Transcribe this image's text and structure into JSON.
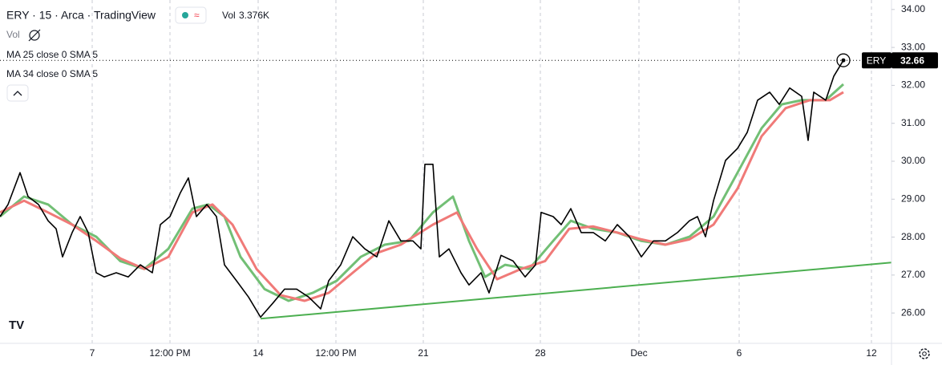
{
  "chart_data": {
    "type": "line",
    "title": "ERY · 15 · Arca · TradingView",
    "volume_title": "Vol",
    "volume_value": "3.376K",
    "volume_legend": "Vol",
    "indicators": [
      "MA 25 close 0 SMA 5",
      "MA 34 close 0 SMA 5"
    ],
    "price_tag": {
      "label": "ERY",
      "value": 32.66
    },
    "xlim": [
      0,
      1112
    ],
    "xticks": [
      {
        "value": 115,
        "label": "7"
      },
      {
        "value": 212,
        "label": "12:00 PM"
      },
      {
        "value": 322,
        "label": "14"
      },
      {
        "value": 419,
        "label": "12:00 PM"
      },
      {
        "value": 528,
        "label": "21"
      },
      {
        "value": 674,
        "label": "28"
      },
      {
        "value": 797,
        "label": "Dec"
      },
      {
        "value": 922,
        "label": "6"
      },
      {
        "value": 1087,
        "label": "12"
      }
    ],
    "ylim": [
      25.2,
      34.25
    ],
    "yticks": [
      {
        "value": 26,
        "label": "26.00"
      },
      {
        "value": 27,
        "label": "27.00"
      },
      {
        "value": 28,
        "label": "28.00"
      },
      {
        "value": 29,
        "label": "29.00"
      },
      {
        "value": 30,
        "label": "30.00"
      },
      {
        "value": 31,
        "label": "31.00"
      },
      {
        "value": 32,
        "label": "32.00"
      },
      {
        "value": 33,
        "label": "33.00"
      },
      {
        "value": 34,
        "label": "34.00"
      }
    ],
    "xgrid": true,
    "ygrid": false,
    "series": [
      {
        "color": "#000000",
        "x": [
          0,
          10,
          25,
          35,
          48,
          60,
          70,
          78,
          90,
          100,
          110,
          120,
          130,
          145,
          160,
          175,
          190,
          200,
          212,
          225,
          235,
          245,
          258,
          270,
          280,
          295,
          310,
          325,
          340,
          355,
          370,
          385,
          400,
          410,
          425,
          440,
          455,
          470,
          485,
          500,
          515,
          525,
          530,
          540,
          548,
          560,
          575,
          585,
          600,
          610,
          625,
          640,
          655,
          668,
          675,
          690,
          700,
          712,
          725,
          740,
          755,
          770,
          785,
          800,
          815,
          830,
          845,
          860,
          870,
          880,
          890,
          905,
          920,
          932,
          945,
          960,
          972,
          985,
          1000,
          1008,
          1015,
          1030,
          1040,
          1052
        ],
        "values": [
          28.54,
          28.86,
          29.7,
          29.07,
          28.86,
          28.43,
          28.22,
          27.48,
          28.12,
          28.54,
          28.12,
          27.06,
          26.95,
          27.06,
          26.95,
          27.27,
          27.06,
          28.33,
          28.54,
          29.17,
          29.56,
          28.54,
          28.86,
          28.54,
          27.27,
          26.85,
          26.42,
          25.89,
          26.25,
          26.63,
          26.63,
          26.42,
          26.11,
          26.85,
          27.27,
          28.01,
          27.69,
          27.48,
          28.43,
          27.9,
          27.9,
          27.69,
          29.92,
          29.92,
          27.48,
          27.69,
          27.06,
          26.74,
          27.06,
          26.53,
          27.52,
          27.37,
          26.95,
          27.27,
          28.65,
          28.54,
          28.33,
          28.75,
          28.12,
          28.12,
          27.9,
          28.33,
          28.01,
          27.48,
          27.9,
          27.9,
          28.12,
          28.43,
          28.54,
          28.01,
          28.96,
          30.02,
          30.34,
          30.76,
          31.61,
          31.82,
          31.5,
          31.93,
          31.71,
          30.55,
          31.82,
          31.61,
          32.24,
          32.66
        ]
      },
      {
        "color": "#f07a78",
        "x": [
          0,
          30,
          60,
          90,
          120,
          150,
          180,
          210,
          240,
          265,
          290,
          320,
          350,
          380,
          410,
          440,
          470,
          500,
          540,
          570,
          595,
          620,
          650,
          680,
          710,
          740,
          770,
          800,
          830,
          860,
          890,
          920,
          950,
          980,
          1010,
          1035,
          1052
        ],
        "values": [
          28.65,
          28.96,
          28.65,
          28.33,
          27.9,
          27.44,
          27.16,
          27.48,
          28.65,
          28.86,
          28.33,
          27.16,
          26.47,
          26.32,
          26.53,
          27.06,
          27.58,
          27.8,
          28.33,
          28.65,
          27.69,
          26.89,
          27.16,
          27.37,
          28.22,
          28.28,
          28.12,
          27.94,
          27.8,
          27.94,
          28.33,
          29.28,
          30.66,
          31.4,
          31.61,
          31.61,
          31.82
        ]
      },
      {
        "color": "#72bf75",
        "x": [
          0,
          30,
          60,
          90,
          120,
          150,
          180,
          210,
          240,
          260,
          280,
          300,
          330,
          360,
          390,
          420,
          450,
          480,
          510,
          540,
          565,
          585,
          605,
          630,
          660,
          690,
          712,
          740,
          770,
          800,
          830,
          860,
          890,
          920,
          950,
          975,
          1000,
          1030,
          1052
        ],
        "values": [
          28.54,
          29.07,
          28.86,
          28.33,
          28.01,
          27.37,
          27.16,
          27.69,
          28.75,
          28.86,
          28.54,
          27.48,
          26.63,
          26.32,
          26.53,
          26.85,
          27.48,
          27.8,
          27.9,
          28.65,
          29.07,
          27.9,
          26.95,
          27.27,
          27.16,
          27.9,
          28.43,
          28.22,
          28.12,
          27.9,
          27.8,
          28.01,
          28.54,
          29.7,
          30.87,
          31.5,
          31.61,
          31.61,
          32.03
        ]
      }
    ],
    "trendline": {
      "color": "#4caf50",
      "x": [
        325,
        1112
      ],
      "values": [
        25.85,
        27.33
      ]
    }
  }
}
